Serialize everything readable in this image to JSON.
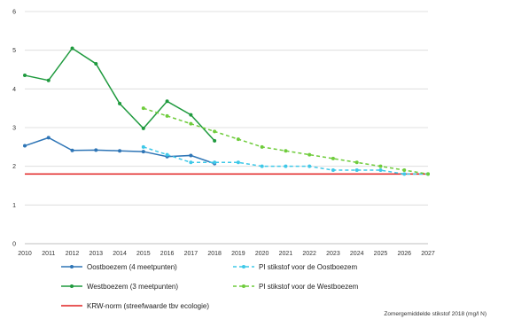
{
  "chart_data": {
    "type": "line",
    "title": "",
    "xlabel": "",
    "ylabel": "",
    "x": [
      "2010",
      "2011",
      "2012",
      "2013",
      "2014",
      "2015",
      "2016",
      "2017",
      "2018",
      "2019",
      "2020",
      "2021",
      "2022",
      "2023",
      "2024",
      "2025",
      "2026",
      "2027"
    ],
    "ylim": [
      0,
      6
    ],
    "yticks": [
      0,
      1,
      2,
      3,
      4,
      5,
      6
    ],
    "grid": true,
    "legend_placement": "bottom",
    "series": [
      {
        "name": "Oostboezem (4 meetpunten)",
        "color": "#2e75b6",
        "dashed": false,
        "values": [
          2.53,
          2.74,
          2.41,
          2.42,
          2.4,
          2.38,
          2.25,
          2.28,
          2.07,
          null,
          null,
          null,
          null,
          null,
          null,
          null,
          null,
          null
        ]
      },
      {
        "name": "Westboezem (3 meetpunten)",
        "color": "#1f9a3e",
        "dashed": false,
        "values": [
          4.35,
          4.22,
          5.05,
          4.65,
          3.62,
          2.98,
          3.68,
          3.33,
          2.66,
          null,
          null,
          null,
          null,
          null,
          null,
          null,
          null,
          null
        ]
      },
      {
        "name": "KRW-norm (streefwaarde tbv ecologie)",
        "color": "#e02020",
        "dashed": false,
        "markers": false,
        "values": [
          1.8,
          1.8,
          1.8,
          1.8,
          1.8,
          1.8,
          1.8,
          1.8,
          1.8,
          1.8,
          1.8,
          1.8,
          1.8,
          1.8,
          1.8,
          1.8,
          1.8,
          1.8
        ]
      },
      {
        "name": "PI stikstof voor de Oostboezem",
        "color": "#3ec8e8",
        "dashed": true,
        "values": [
          null,
          null,
          null,
          null,
          null,
          2.5,
          2.3,
          2.1,
          2.1,
          2.1,
          2.0,
          2.0,
          2.0,
          1.9,
          1.9,
          1.9,
          1.8,
          1.8
        ]
      },
      {
        "name": "PI stikstof voor de Westboezem",
        "color": "#6fcc3c",
        "dashed": true,
        "values": [
          null,
          null,
          null,
          null,
          null,
          3.5,
          3.3,
          3.1,
          2.9,
          2.7,
          2.5,
          2.4,
          2.3,
          2.2,
          2.1,
          2.0,
          1.9,
          1.8
        ]
      }
    ],
    "annotation": "Zomergemiddelde stikstof 2018 (mg/l N)"
  },
  "legend": [
    {
      "label": "Oostboezem (4 meetpunten)",
      "color": "#2e75b6",
      "dashed": false,
      "marker": true
    },
    {
      "label": "PI stikstof voor de Oostboezem",
      "color": "#3ec8e8",
      "dashed": true,
      "marker": true
    },
    {
      "label": "Westboezem (3 meetpunten)",
      "color": "#1f9a3e",
      "dashed": false,
      "marker": true
    },
    {
      "label": "PI stikstof voor de Westboezem",
      "color": "#6fcc3c",
      "dashed": true,
      "marker": true
    },
    {
      "label": "KRW-norm (streefwaarde tbv ecologie)",
      "color": "#e02020",
      "dashed": false,
      "marker": false
    }
  ]
}
